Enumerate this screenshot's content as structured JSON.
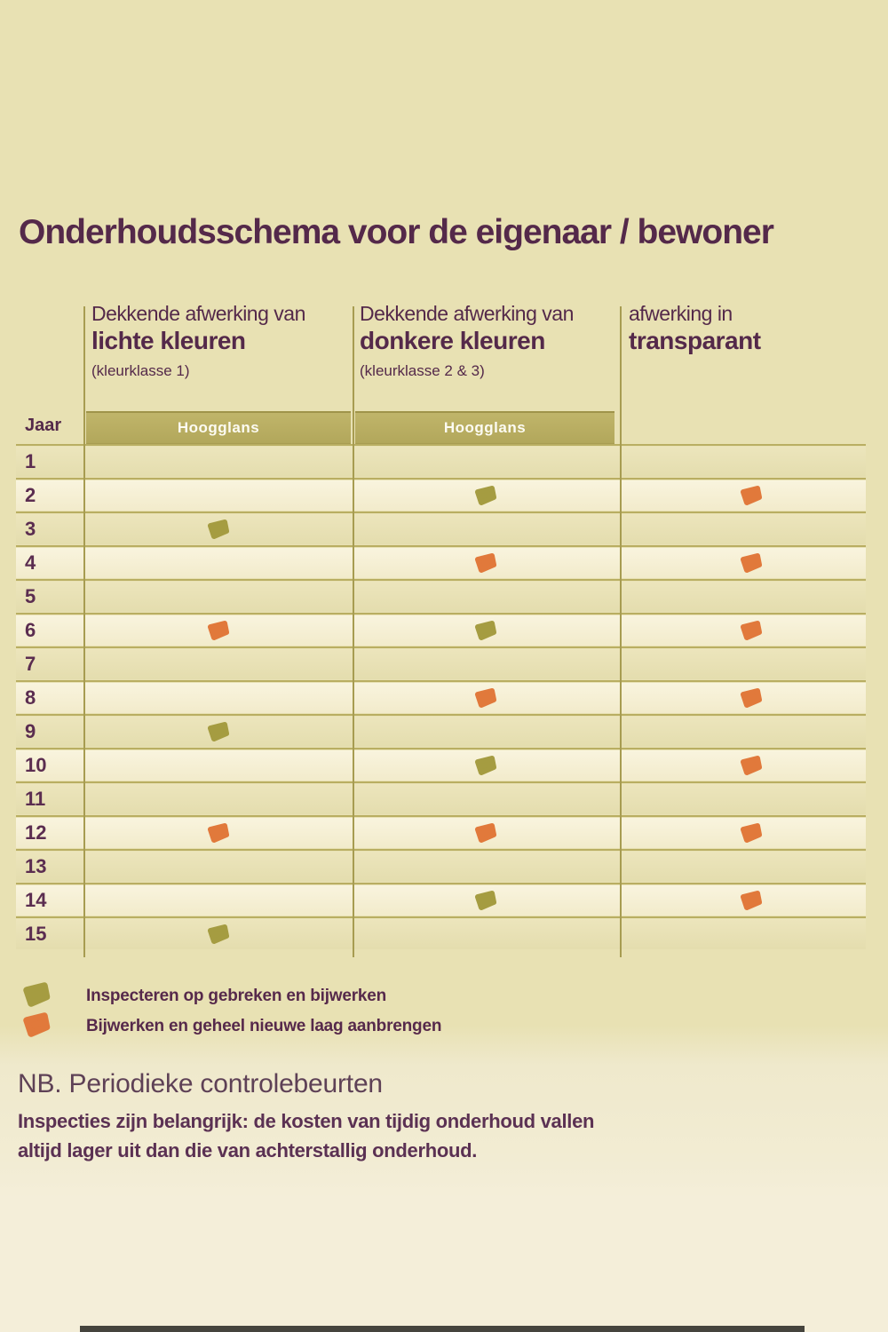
{
  "page": {
    "title": "Onderhoudsschema voor de eigenaar / bewoner",
    "background_top": "#e8e1b3",
    "background_bottom": "#f4eed9"
  },
  "table": {
    "year_label": "Jaar",
    "band_label": "Hoogglans",
    "columns": [
      {
        "id": "light",
        "line1": "Dekkende afwerking van",
        "line2": "lichte kleuren",
        "line3": "(kleurklasse 1)",
        "band": "Hoogglans"
      },
      {
        "id": "dark",
        "line1": "Dekkende afwerking van",
        "line2": "donkere kleuren",
        "line3": "(kleurklasse 2 & 3)",
        "band": "Hoogglans"
      },
      {
        "id": "transparent",
        "line1": "afwerking in",
        "line2": "transparant",
        "line3": "",
        "band": ""
      }
    ],
    "years": [
      1,
      2,
      3,
      4,
      5,
      6,
      7,
      8,
      9,
      10,
      11,
      12,
      13,
      14,
      15
    ],
    "markers": [
      {
        "column": "light",
        "year": 3,
        "action": "inspect"
      },
      {
        "column": "light",
        "year": 6,
        "action": "renew"
      },
      {
        "column": "light",
        "year": 9,
        "action": "inspect"
      },
      {
        "column": "light",
        "year": 12,
        "action": "renew"
      },
      {
        "column": "light",
        "year": 15,
        "action": "inspect"
      },
      {
        "column": "dark",
        "year": 2,
        "action": "inspect"
      },
      {
        "column": "dark",
        "year": 4,
        "action": "renew"
      },
      {
        "column": "dark",
        "year": 6,
        "action": "inspect"
      },
      {
        "column": "dark",
        "year": 8,
        "action": "renew"
      },
      {
        "column": "dark",
        "year": 10,
        "action": "inspect"
      },
      {
        "column": "dark",
        "year": 12,
        "action": "renew"
      },
      {
        "column": "dark",
        "year": 14,
        "action": "inspect"
      },
      {
        "column": "transparent",
        "year": 2,
        "action": "renew"
      },
      {
        "column": "transparent",
        "year": 4,
        "action": "renew"
      },
      {
        "column": "transparent",
        "year": 6,
        "action": "renew"
      },
      {
        "column": "transparent",
        "year": 8,
        "action": "renew"
      },
      {
        "column": "transparent",
        "year": 10,
        "action": "renew"
      },
      {
        "column": "transparent",
        "year": 12,
        "action": "renew"
      },
      {
        "column": "transparent",
        "year": 14,
        "action": "renew"
      }
    ]
  },
  "legend": {
    "items": [
      {
        "action": "inspect",
        "color": "#a59c41",
        "label": "Inspecteren op gebreken en bijwerken"
      },
      {
        "action": "renew",
        "color": "#e1793b",
        "label": "Bijwerken en geheel nieuwe laag aanbrengen"
      }
    ]
  },
  "note": {
    "heading": "NB. Periodieke controlebeurten",
    "line1": "Inspecties zijn belangrijk: de kosten van tijdig onderhoud vallen",
    "line2": "altijd lager uit dan die van achterstallig onderhoud."
  }
}
